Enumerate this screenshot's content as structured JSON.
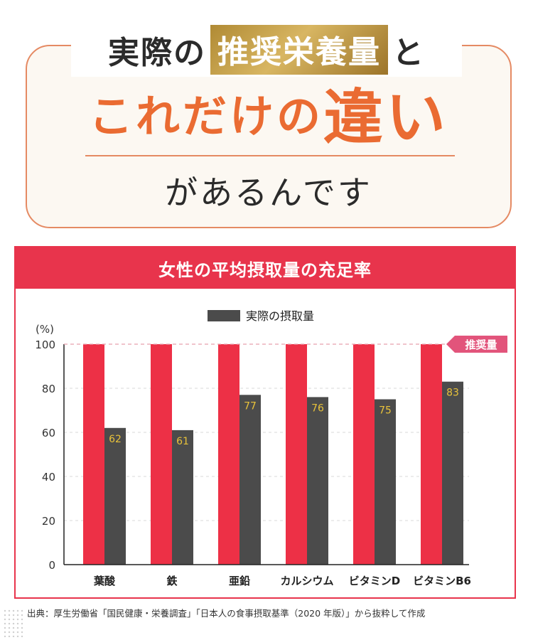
{
  "headline": {
    "prefix": "実際の",
    "highlight": "推奨栄養量",
    "suffix": "と",
    "big_a": "これだけの",
    "big_b": "違い",
    "bottom": "があるんです"
  },
  "colors": {
    "recommended_bar": "#ed3046",
    "actual_bar": "#4b4b4b",
    "value_label": "#e8c23a",
    "accent": "#e8344c",
    "headline_orange": "#ea6b32"
  },
  "chart_data": {
    "type": "bar",
    "title": "女性の平均摂取量の充足率",
    "legend": {
      "label": "実際の摂取量",
      "position": "top-center"
    },
    "y_unit": "(%)",
    "ylim": [
      0,
      100
    ],
    "yticks": [
      0,
      20,
      40,
      60,
      80,
      100
    ],
    "grid": true,
    "categories": [
      "葉酸",
      "鉄",
      "亜鉛",
      "カルシウム",
      "ビタミンD",
      "ビタミンB6"
    ],
    "series": [
      {
        "values": [
          100,
          100,
          100,
          100,
          100,
          100
        ]
      },
      {
        "name": "実際の摂取量",
        "values": [
          62,
          61,
          77,
          76,
          75,
          83
        ]
      }
    ],
    "reference_line": {
      "value": 100,
      "label": "推奨量"
    }
  },
  "source": "出典：厚生労働省「国民健康・栄養調査」「日本人の食事摂取基準（2020 年版）」から抜粋して作成"
}
